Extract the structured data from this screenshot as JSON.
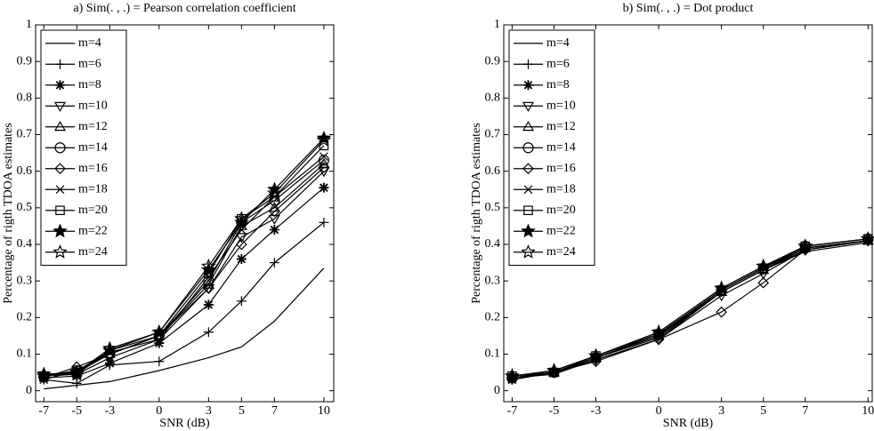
{
  "chart_data": [
    {
      "type": "line",
      "title": "a) Sim(. , .) = Pearson correlation coefficient",
      "xlabel": "SNR (dB)",
      "ylabel": "Percentage of rigth TDOA estimates",
      "x": [
        -7,
        -5,
        -3,
        0,
        3,
        5,
        7,
        10
      ],
      "xlim": [
        -7.5,
        10.6
      ],
      "xticks": [
        -7,
        -5,
        -3,
        0,
        3,
        5,
        7,
        10
      ],
      "ylim": [
        -0.03,
        1
      ],
      "yticks": [
        0,
        0.1,
        0.2,
        0.3,
        0.4,
        0.5,
        0.6,
        0.7,
        0.8,
        0.9,
        1
      ],
      "grid": false,
      "legend": "upper left",
      "series": [
        {
          "name": "m=4",
          "color": "#000000",
          "marker": "none",
          "values": [
            0.005,
            0.015,
            0.025,
            0.055,
            0.09,
            0.12,
            0.19,
            0.335
          ]
        },
        {
          "name": "m=6",
          "color": "#000000",
          "marker": "plus",
          "values": [
            0.03,
            0.02,
            0.07,
            0.08,
            0.16,
            0.245,
            0.35,
            0.46
          ]
        },
        {
          "name": "m=8",
          "color": "#000000",
          "marker": "asterisk",
          "values": [
            0.035,
            0.04,
            0.075,
            0.13,
            0.235,
            0.36,
            0.44,
            0.555
          ]
        },
        {
          "name": "m=10",
          "color": "#000000",
          "marker": "triangle-down",
          "values": [
            0.04,
            0.045,
            0.09,
            0.14,
            0.28,
            0.42,
            0.47,
            0.6
          ]
        },
        {
          "name": "m=12",
          "color": "#000000",
          "marker": "triangle-up",
          "values": [
            0.045,
            0.05,
            0.1,
            0.15,
            0.29,
            0.45,
            0.5,
            0.62
          ]
        },
        {
          "name": "m=14",
          "color": "#000000",
          "marker": "circle",
          "values": [
            0.04,
            0.055,
            0.1,
            0.15,
            0.3,
            0.46,
            0.52,
            0.63
          ]
        },
        {
          "name": "m=16",
          "color": "#000000",
          "marker": "diamond",
          "values": [
            0.035,
            0.065,
            0.1,
            0.15,
            0.28,
            0.4,
            0.49,
            0.61
          ]
        },
        {
          "name": "m=18",
          "color": "#000000",
          "marker": "x",
          "values": [
            0.03,
            0.055,
            0.105,
            0.14,
            0.31,
            0.44,
            0.53,
            0.64
          ]
        },
        {
          "name": "m=20",
          "color": "#000000",
          "marker": "square",
          "values": [
            0.04,
            0.05,
            0.11,
            0.15,
            0.32,
            0.47,
            0.53,
            0.67
          ]
        },
        {
          "name": "m=22",
          "color": "#000000",
          "marker": "star-filled",
          "values": [
            0.045,
            0.045,
            0.11,
            0.16,
            0.33,
            0.46,
            0.55,
            0.69
          ]
        },
        {
          "name": "m=24",
          "color": "#000000",
          "marker": "star-open",
          "values": [
            0.04,
            0.05,
            0.115,
            0.16,
            0.34,
            0.47,
            0.54,
            0.685
          ]
        }
      ]
    },
    {
      "type": "line",
      "title": "b) Sim(. , .) = Dot product",
      "xlabel": "SNR (dB)",
      "ylabel": "Percentage of rigth TDOA estimates",
      "x": [
        -7,
        -5,
        -3,
        0,
        3,
        5,
        7,
        10
      ],
      "xlim": [
        -7.4,
        10.2
      ],
      "xticks": [
        -7,
        -5,
        -3,
        0,
        3,
        5,
        7,
        10
      ],
      "ylim": [
        -0.03,
        1
      ],
      "yticks": [
        0,
        0.1,
        0.2,
        0.3,
        0.4,
        0.5,
        0.6,
        0.7,
        0.8,
        0.9,
        1
      ],
      "grid": false,
      "legend": "upper left",
      "series": [
        {
          "name": "m=4",
          "color": "#000000",
          "marker": "none",
          "values": [
            0.035,
            0.045,
            0.085,
            0.14,
            0.27,
            0.33,
            0.38,
            0.405
          ]
        },
        {
          "name": "m=6",
          "color": "#000000",
          "marker": "plus",
          "values": [
            0.035,
            0.05,
            0.09,
            0.145,
            0.27,
            0.33,
            0.385,
            0.41
          ]
        },
        {
          "name": "m=8",
          "color": "#000000",
          "marker": "asterisk",
          "values": [
            0.03,
            0.05,
            0.09,
            0.15,
            0.275,
            0.335,
            0.39,
            0.41
          ]
        },
        {
          "name": "m=10",
          "color": "#000000",
          "marker": "triangle-down",
          "values": [
            0.035,
            0.05,
            0.085,
            0.14,
            0.26,
            0.32,
            0.385,
            0.41
          ]
        },
        {
          "name": "m=12",
          "color": "#000000",
          "marker": "triangle-up",
          "values": [
            0.04,
            0.05,
            0.09,
            0.15,
            0.27,
            0.33,
            0.39,
            0.41
          ]
        },
        {
          "name": "m=14",
          "color": "#000000",
          "marker": "circle",
          "values": [
            0.035,
            0.05,
            0.09,
            0.155,
            0.275,
            0.335,
            0.395,
            0.415
          ]
        },
        {
          "name": "m=16",
          "color": "#000000",
          "marker": "diamond",
          "values": [
            0.035,
            0.05,
            0.08,
            0.14,
            0.215,
            0.295,
            0.385,
            0.41
          ]
        },
        {
          "name": "m=18",
          "color": "#000000",
          "marker": "x",
          "values": [
            0.03,
            0.05,
            0.09,
            0.15,
            0.275,
            0.335,
            0.39,
            0.41
          ]
        },
        {
          "name": "m=20",
          "color": "#000000",
          "marker": "square",
          "values": [
            0.04,
            0.05,
            0.095,
            0.155,
            0.275,
            0.335,
            0.395,
            0.415
          ]
        },
        {
          "name": "m=22",
          "color": "#000000",
          "marker": "star-filled",
          "values": [
            0.04,
            0.055,
            0.095,
            0.16,
            0.28,
            0.34,
            0.395,
            0.415
          ]
        },
        {
          "name": "m=24",
          "color": "#000000",
          "marker": "star-open",
          "values": [
            0.04,
            0.055,
            0.095,
            0.16,
            0.28,
            0.34,
            0.395,
            0.415
          ]
        }
      ]
    }
  ]
}
